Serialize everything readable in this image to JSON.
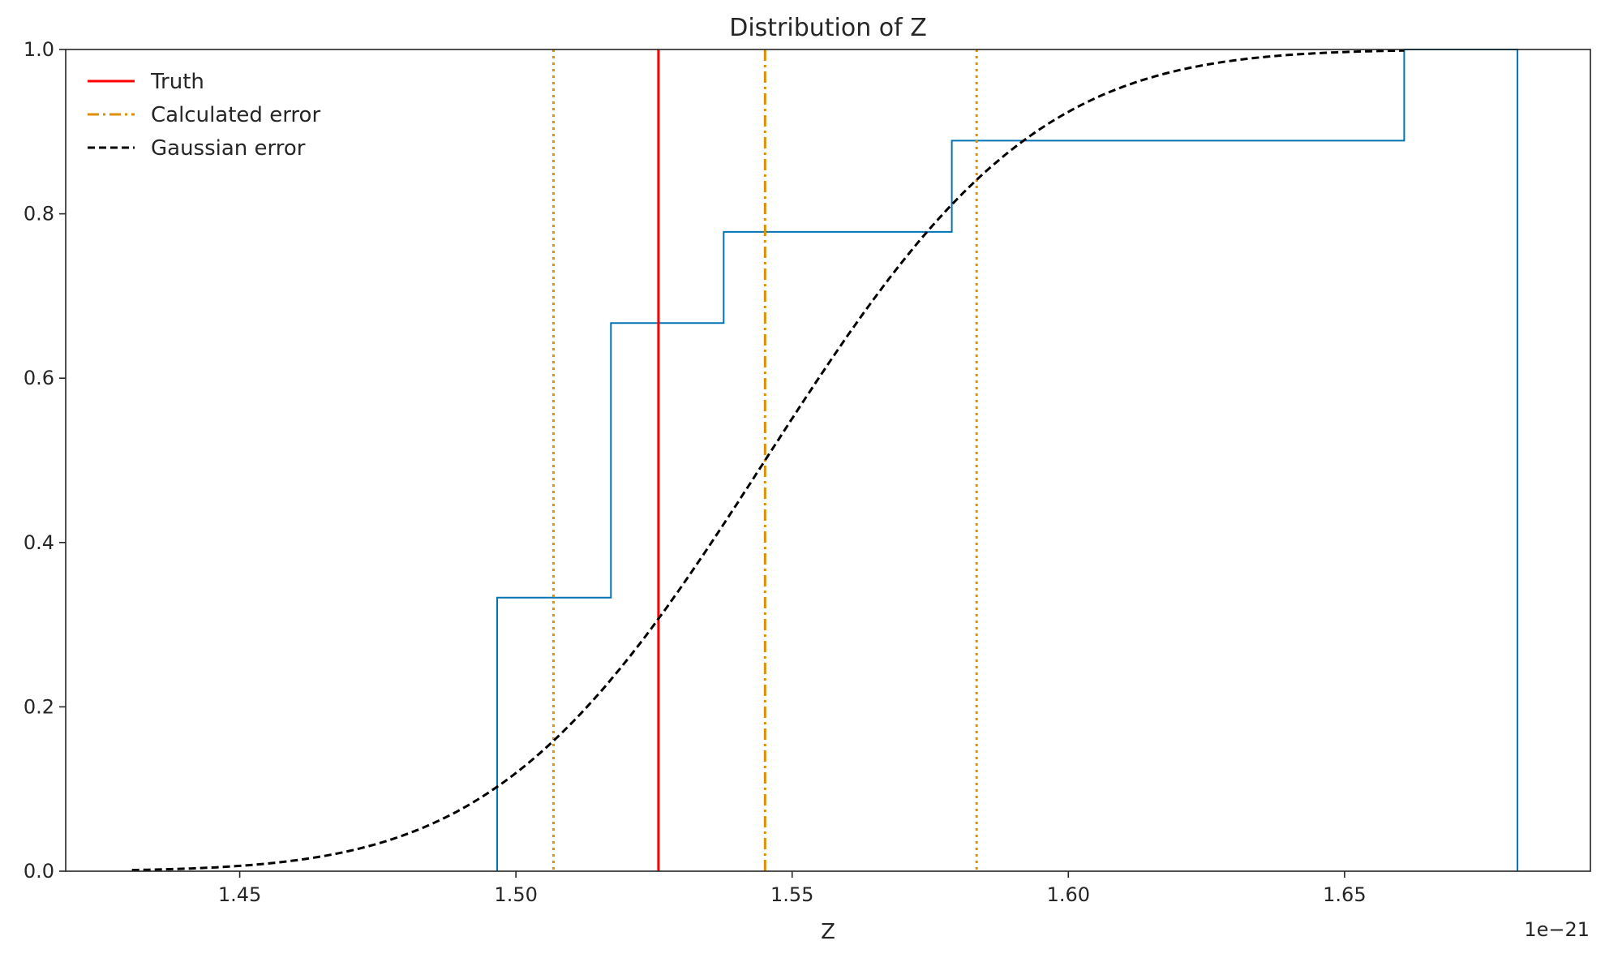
{
  "chart_data": {
    "type": "line",
    "title": "Distribution of Z",
    "xlabel": "Z",
    "ylabel": "",
    "x_offset_label": "1e−21",
    "xlim": [
      1.4185,
      1.6945
    ],
    "ylim": [
      0.0,
      1.0
    ],
    "xticks": [
      1.45,
      1.5,
      1.55,
      1.6,
      1.65
    ],
    "xtick_labels": [
      "1.45",
      "1.50",
      "1.55",
      "1.60",
      "1.65"
    ],
    "yticks": [
      0.0,
      0.2,
      0.4,
      0.6,
      0.8,
      1.0
    ],
    "ytick_labels": [
      "0.0",
      "0.2",
      "0.4",
      "0.6",
      "0.8",
      "1.0"
    ],
    "grid": false,
    "legend_position": "top-left",
    "legend": [
      {
        "label": "Truth",
        "color": "#ff0000",
        "style": "solid"
      },
      {
        "label": "Calculated error",
        "color": "#de8f05",
        "style": "dashdot"
      },
      {
        "label": "Gaussian error",
        "color": "#000000",
        "style": "dashed"
      }
    ],
    "empirical_cdf": {
      "color": "#0173b2",
      "x": [
        1.4966,
        1.5172,
        1.5376,
        1.5789,
        1.6608,
        1.6813
      ],
      "y": [
        0.333,
        0.667,
        0.778,
        0.889,
        1.0,
        1.0
      ]
    },
    "truth": {
      "x": 1.5258,
      "color": "#ff0000"
    },
    "calculated_error": {
      "mean": 1.5451,
      "lower": 1.5068,
      "upper": 1.5834,
      "color": "#de8f05"
    },
    "gaussian_error": {
      "mean": 1.5451,
      "std": 0.0383,
      "x_start": 1.4305,
      "x_end": 1.6608,
      "color": "#000000"
    }
  }
}
